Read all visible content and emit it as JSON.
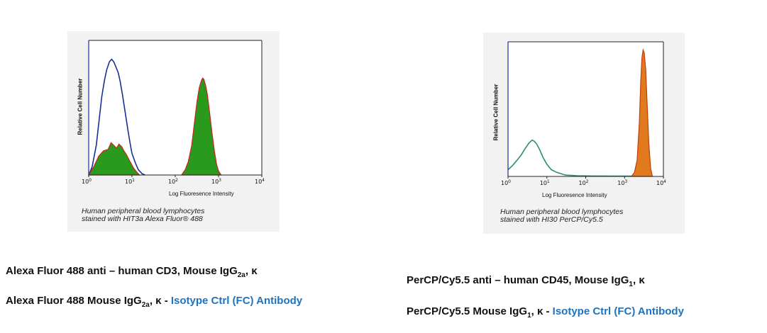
{
  "chart_data": [
    {
      "type": "histogram",
      "xlabel": "Log Fluoresence Intensity",
      "ylabel": "Relative Cell Number",
      "x_scale": "log",
      "xlim": [
        1,
        10000
      ],
      "ylim": [
        0,
        100
      ],
      "xticks": [
        {
          "value": 1,
          "base": "10",
          "exp": "0"
        },
        {
          "value": 10,
          "base": "10",
          "exp": "1"
        },
        {
          "value": 100,
          "base": "10",
          "exp": "2"
        },
        {
          "value": 1000,
          "base": "10",
          "exp": "3"
        },
        {
          "value": 10000,
          "base": "10",
          "exp": "4"
        }
      ],
      "caption_lines": [
        "Human peripheral blood lymphocytes",
        "stained with HIT3a Alexa Fluor® 488"
      ],
      "series": [
        {
          "kind": "line",
          "color": "#1a2f9a",
          "points": [
            [
              1,
              0
            ],
            [
              1.2,
              6
            ],
            [
              1.5,
              22
            ],
            [
              1.8,
              45
            ],
            [
              2,
              58
            ],
            [
              2.3,
              70
            ],
            [
              2.6,
              78
            ],
            [
              3,
              84
            ],
            [
              3.4,
              86
            ],
            [
              3.8,
              84
            ],
            [
              4.3,
              80
            ],
            [
              4.8,
              76
            ],
            [
              5.3,
              70
            ],
            [
              6,
              60
            ],
            [
              7,
              46
            ],
            [
              8,
              34
            ],
            [
              9,
              24
            ],
            [
              10,
              16
            ],
            [
              12,
              9
            ],
            [
              14,
              4
            ],
            [
              17,
              1
            ],
            [
              20,
              0
            ]
          ]
        },
        {
          "kind": "fill",
          "color": "#2a9a1c",
          "outline": "#d02020",
          "points": [
            [
              1,
              0
            ],
            [
              1.3,
              6
            ],
            [
              1.7,
              14
            ],
            [
              2.2,
              18
            ],
            [
              2.8,
              19
            ],
            [
              3.3,
              24
            ],
            [
              3.8,
              22
            ],
            [
              4.4,
              20
            ],
            [
              5,
              23
            ],
            [
              5.8,
              21
            ],
            [
              6.5,
              18
            ],
            [
              7.5,
              15
            ],
            [
              9,
              10
            ],
            [
              11,
              5
            ],
            [
              13,
              2
            ],
            [
              15,
              0
            ]
          ]
        },
        {
          "kind": "fill",
          "color": "#2a9a1c",
          "outline": "#d02020",
          "points": [
            [
              140,
              0
            ],
            [
              170,
              4
            ],
            [
              200,
              10
            ],
            [
              240,
              22
            ],
            [
              280,
              40
            ],
            [
              320,
              55
            ],
            [
              360,
              65
            ],
            [
              400,
              70
            ],
            [
              430,
              72
            ],
            [
              460,
              71
            ],
            [
              500,
              67
            ],
            [
              550,
              60
            ],
            [
              620,
              47
            ],
            [
              700,
              32
            ],
            [
              800,
              18
            ],
            [
              900,
              8
            ],
            [
              1000,
              3
            ],
            [
              1150,
              0
            ]
          ]
        }
      ]
    },
    {
      "type": "histogram",
      "xlabel": "Log Fluoresence Intensity",
      "ylabel": "Relative Cell Number",
      "x_scale": "log",
      "xlim": [
        1,
        10000
      ],
      "ylim": [
        0,
        100
      ],
      "xticks": [
        {
          "value": 1,
          "base": "10",
          "exp": "0"
        },
        {
          "value": 10,
          "base": "10",
          "exp": "1"
        },
        {
          "value": 100,
          "base": "10",
          "exp": "2"
        },
        {
          "value": 1000,
          "base": "10",
          "exp": "3"
        },
        {
          "value": 10000,
          "base": "10",
          "exp": "4"
        }
      ],
      "caption_lines": [
        "Human peripheral blood lymphocytes",
        "stained with HI30 PerCP/Cy5.5"
      ],
      "series": [
        {
          "kind": "line",
          "color": "#2a8f6a",
          "points": [
            [
              1,
              5
            ],
            [
              1.3,
              8
            ],
            [
              1.7,
              12
            ],
            [
              2.2,
              16
            ],
            [
              2.8,
              21
            ],
            [
              3.5,
              25
            ],
            [
              4.2,
              27
            ],
            [
              4.8,
              26
            ],
            [
              5.5,
              24
            ],
            [
              6.5,
              20
            ],
            [
              8,
              14
            ],
            [
              10,
              9
            ],
            [
              13,
              5
            ],
            [
              18,
              3
            ],
            [
              30,
              1
            ],
            [
              60,
              0.5
            ],
            [
              150,
              0.3
            ],
            [
              500,
              0.2
            ],
            [
              1500,
              0.3
            ],
            [
              2000,
              0.5
            ]
          ]
        },
        {
          "kind": "fill",
          "color": "#e07a1c",
          "outline": "#c04010",
          "points": [
            [
              1500,
              0
            ],
            [
              1800,
              3
            ],
            [
              2100,
              12
            ],
            [
              2400,
              40
            ],
            [
              2600,
              70
            ],
            [
              2800,
              88
            ],
            [
              3000,
              94
            ],
            [
              3200,
              92
            ],
            [
              3500,
              80
            ],
            [
              3800,
              55
            ],
            [
              4200,
              25
            ],
            [
              4700,
              6
            ],
            [
              5200,
              0
            ]
          ]
        }
      ]
    }
  ],
  "titles": {
    "left_line1": {
      "text": "Alexa Fluor 488 anti – human CD3, Mouse IgG",
      "sub": "2a",
      "suffix": ", κ"
    },
    "left_line2": {
      "text": "Alexa Fluor 488 Mouse IgG",
      "sub": "2a",
      "suffix": ", κ - ",
      "link": "Isotype Ctrl (FC) Antibody"
    },
    "right_line1": {
      "text": "PerCP/Cy5.5 anti – human CD45, Mouse IgG",
      "sub": "1",
      "suffix": ", κ"
    },
    "right_line2": {
      "text": "PerCP/Cy5.5 Mouse IgG",
      "sub": "1",
      "suffix": ", κ - ",
      "link": "Isotype Ctrl (FC) Antibody"
    }
  }
}
